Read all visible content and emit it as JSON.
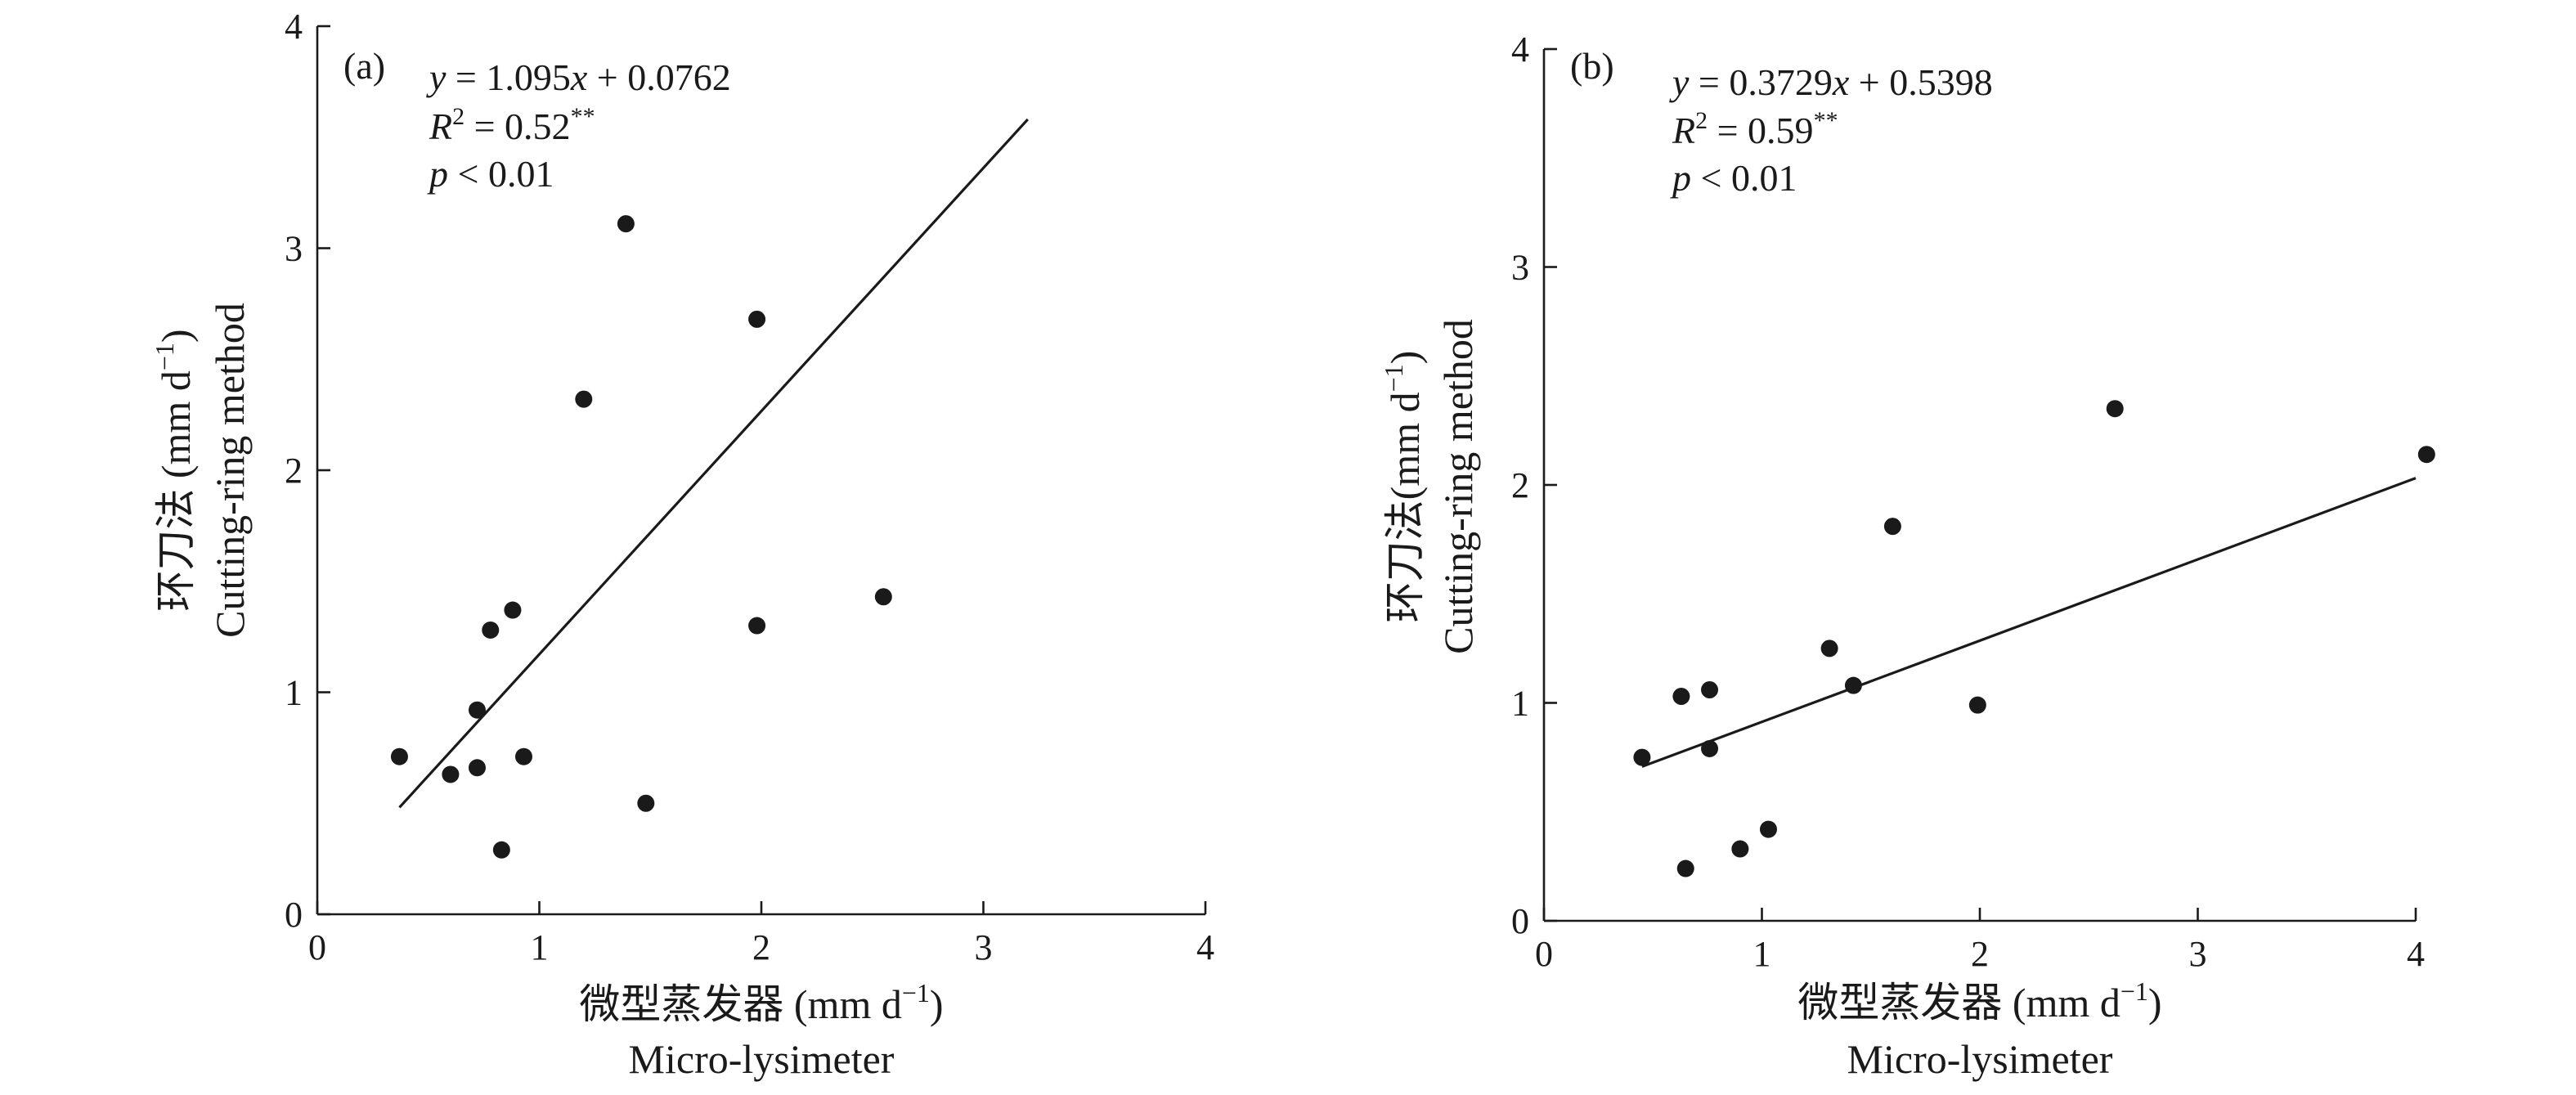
{
  "chart_data": [
    {
      "type": "scatter",
      "panel_label": "(a)",
      "xlabel_cn": "微型蒸发器 (mm d",
      "xlabel_sup": "−1",
      "xlabel_close": ")",
      "xlabel_en": "Micro-lysimeter",
      "ylabel_cn": "环刀法 (mm d",
      "ylabel_sup": "−1",
      "ylabel_close": ")",
      "ylabel_en": "Cutting-ring method",
      "xlim": [
        0,
        4
      ],
      "ylim": [
        0,
        4
      ],
      "xticks": [
        "0",
        "1",
        "2",
        "3",
        "4"
      ],
      "yticks": [
        "0",
        "1",
        "2",
        "3",
        "4"
      ],
      "grid": false,
      "annotation": {
        "eq_var": "y",
        "eq_mid": " = 1.095",
        "eq_xvar": "x",
        "eq_tail": " + 0.0762",
        "r_var": "R",
        "r_sup": "2",
        "r_val": " = 0.52",
        "r_stars": "**",
        "p_var": "p",
        "p_val": " < 0.01"
      },
      "fit": {
        "slope": 1.095,
        "intercept": 0.0762,
        "x_range": [
          0.37,
          3.2
        ]
      },
      "points": [
        {
          "x": 0.37,
          "y": 0.71
        },
        {
          "x": 0.6,
          "y": 0.63
        },
        {
          "x": 0.72,
          "y": 0.66
        },
        {
          "x": 0.72,
          "y": 0.92
        },
        {
          "x": 0.78,
          "y": 1.28
        },
        {
          "x": 0.83,
          "y": 0.29
        },
        {
          "x": 0.88,
          "y": 1.37
        },
        {
          "x": 0.93,
          "y": 0.71
        },
        {
          "x": 1.2,
          "y": 2.32
        },
        {
          "x": 1.39,
          "y": 3.11
        },
        {
          "x": 1.48,
          "y": 0.5
        },
        {
          "x": 1.98,
          "y": 2.68
        },
        {
          "x": 1.98,
          "y": 1.3
        },
        {
          "x": 2.55,
          "y": 1.43
        }
      ]
    },
    {
      "type": "scatter",
      "panel_label": "(b)",
      "xlabel_cn": "微型蒸发器 (mm d",
      "xlabel_sup": "−1",
      "xlabel_close": ")",
      "xlabel_en": "Micro-lysimeter",
      "ylabel_cn": "环刀法(mm d",
      "ylabel_sup": "−1",
      "ylabel_close": ")",
      "ylabel_en": "Cutting-ring method",
      "xlim": [
        0,
        4
      ],
      "ylim": [
        0,
        4
      ],
      "xticks": [
        "0",
        "1",
        "2",
        "3",
        "4"
      ],
      "yticks": [
        "0",
        "1",
        "2",
        "3",
        "4"
      ],
      "grid": false,
      "annotation": {
        "eq_var": "y",
        "eq_mid": " = 0.3729",
        "eq_xvar": "x",
        "eq_tail": " + 0.5398",
        "r_var": "R",
        "r_sup": "2",
        "r_val": " = 0.59",
        "r_stars": "**",
        "p_var": "p",
        "p_val": " < 0.01"
      },
      "fit": {
        "slope": 0.3729,
        "intercept": 0.5398,
        "x_range": [
          0.45,
          4.0
        ]
      },
      "points": [
        {
          "x": 0.45,
          "y": 0.75
        },
        {
          "x": 0.63,
          "y": 1.03
        },
        {
          "x": 0.65,
          "y": 0.24
        },
        {
          "x": 0.76,
          "y": 1.06
        },
        {
          "x": 0.76,
          "y": 0.79
        },
        {
          "x": 0.9,
          "y": 0.33
        },
        {
          "x": 1.03,
          "y": 0.42
        },
        {
          "x": 1.31,
          "y": 1.25
        },
        {
          "x": 1.42,
          "y": 1.08
        },
        {
          "x": 1.6,
          "y": 1.81
        },
        {
          "x": 1.99,
          "y": 0.99
        },
        {
          "x": 2.62,
          "y": 2.35
        },
        {
          "x": 4.05,
          "y": 2.14
        }
      ]
    }
  ]
}
